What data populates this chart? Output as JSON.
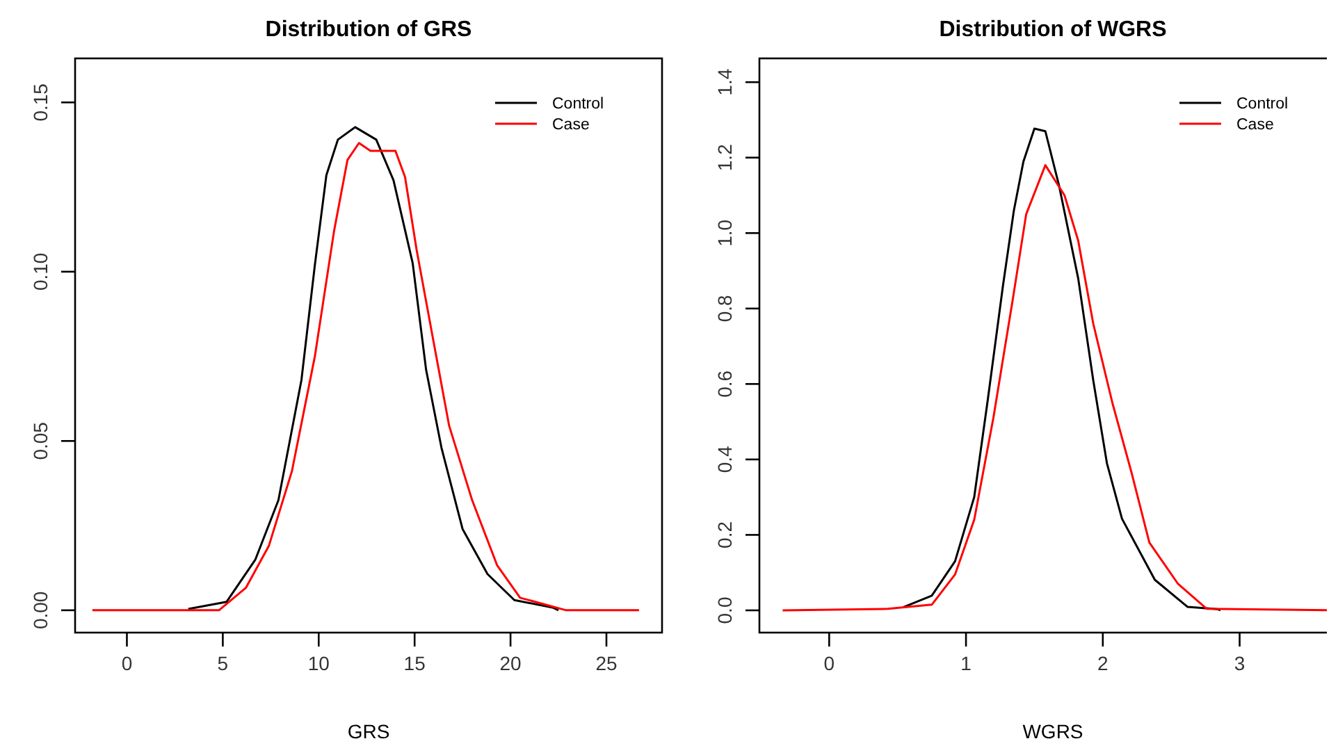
{
  "chart_data": [
    {
      "type": "line",
      "title": "Distribution of GRS",
      "xlabel": "GRS",
      "xlim": [
        -2.7,
        27.9
      ],
      "ylim": [
        -0.0066,
        0.163
      ],
      "xticks": [
        0,
        5,
        10,
        15,
        20,
        25
      ],
      "yticks": [
        {
          "value": 0,
          "label": "0.00"
        },
        {
          "value": 0.05,
          "label": "0.05"
        },
        {
          "value": 0.1,
          "label": "0.10"
        },
        {
          "value": 0.15,
          "label": "0.15"
        }
      ],
      "legend": "top right",
      "grid": false,
      "series": [
        {
          "name": "Control",
          "color": "#000000",
          "x": [
            3.2,
            5.2,
            6.7,
            7.9,
            9.1,
            9.8,
            10.4,
            11.0,
            11.9,
            13.0,
            13.9,
            14.9,
            15.6,
            16.4,
            17.5,
            18.8,
            20.2,
            22.2,
            22.5
          ],
          "values": [
            0.0004,
            0.0025,
            0.015,
            0.0325,
            0.068,
            0.102,
            0.1285,
            0.139,
            0.1427,
            0.139,
            0.127,
            0.1025,
            0.071,
            0.048,
            0.024,
            0.0107,
            0.003,
            0.0008,
            0
          ]
        },
        {
          "name": "Case",
          "color": "#ff0000",
          "x": [
            -1.8,
            4.8,
            6.2,
            7.4,
            8.6,
            9.8,
            10.8,
            11.5,
            12.1,
            12.7,
            14.0,
            14.5,
            15.1,
            15.9,
            16.8,
            18.0,
            19.3,
            20.5,
            22.9,
            26.7
          ],
          "values": [
            0,
            0,
            0.0066,
            0.019,
            0.041,
            0.075,
            0.112,
            0.133,
            0.138,
            0.1357,
            0.1357,
            0.128,
            0.1066,
            0.082,
            0.0545,
            0.0325,
            0.0133,
            0.0037,
            0,
            0
          ]
        }
      ]
    },
    {
      "type": "line",
      "title": "Distribution of WGRS",
      "xlabel": "WGRS",
      "xlim": [
        -0.51,
        3.78
      ],
      "ylim": [
        -0.059,
        1.463
      ],
      "xticks": [
        0,
        1,
        2,
        3
      ],
      "yticks": [
        {
          "value": 0,
          "label": "0.0"
        },
        {
          "value": 0.2,
          "label": "0.2"
        },
        {
          "value": 0.4,
          "label": "0.4"
        },
        {
          "value": 0.6,
          "label": "0.6"
        },
        {
          "value": 0.8,
          "label": "0.8"
        },
        {
          "value": 1,
          "label": "1.0"
        },
        {
          "value": 1.2,
          "label": "1.2"
        },
        {
          "value": 1.4,
          "label": "1.4"
        }
      ],
      "legend": "top right",
      "grid": false,
      "series": [
        {
          "name": "Control",
          "color": "#000000",
          "x": [
            0.54,
            0.75,
            0.92,
            1.06,
            1.16,
            1.27,
            1.35,
            1.42,
            1.5,
            1.58,
            1.68,
            1.82,
            1.93,
            2.03,
            2.14,
            2.38,
            2.62,
            2.84,
            2.86
          ],
          "values": [
            0.008,
            0.039,
            0.13,
            0.3,
            0.56,
            0.86,
            1.06,
            1.19,
            1.277,
            1.27,
            1.126,
            0.88,
            0.61,
            0.39,
            0.243,
            0.081,
            0.009,
            0.003,
            0
          ]
        },
        {
          "name": "Case",
          "color": "#ff0000",
          "x": [
            -0.34,
            0.43,
            0.75,
            0.92,
            1.06,
            1.2,
            1.34,
            1.44,
            1.58,
            1.72,
            1.82,
            1.93,
            2.07,
            2.21,
            2.34,
            2.55,
            2.76,
            3.75
          ],
          "values": [
            0,
            0.004,
            0.015,
            0.095,
            0.24,
            0.51,
            0.82,
            1.05,
            1.18,
            1.1,
            0.98,
            0.76,
            0.55,
            0.365,
            0.18,
            0.07,
            0.004,
            0
          ]
        }
      ]
    }
  ]
}
